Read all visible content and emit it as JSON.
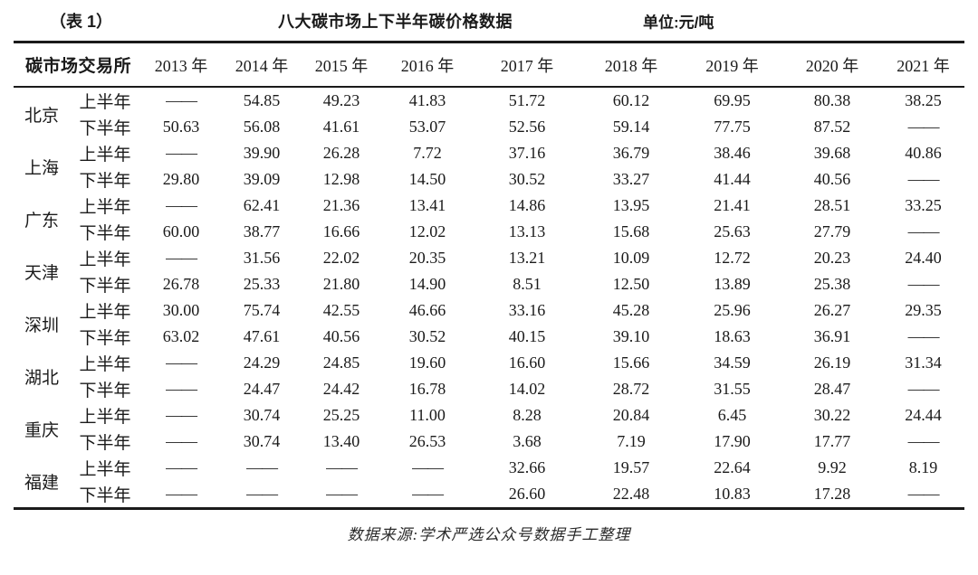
{
  "page": {
    "table_tag": "（表 1）",
    "title": "八大碳市场上下半年碳价格数据",
    "unit": "单位:元/吨",
    "source": "数据来源:学术严选公众号数据手工整理"
  },
  "table": {
    "exchange_header": "碳市场交易所",
    "years": [
      "2013 年",
      "2014 年",
      "2015 年",
      "2016 年",
      "2017 年",
      "2018 年",
      "2019 年",
      "2020 年",
      "2021 年"
    ],
    "half_labels": {
      "first": "上半年",
      "second": "下半年"
    },
    "no_data_symbol": "——",
    "markets": [
      {
        "name": "北京",
        "first_half": [
          "——",
          "54.85",
          "49.23",
          "41.83",
          "51.72",
          "60.12",
          "69.95",
          "80.38",
          "38.25"
        ],
        "second_half": [
          "50.63",
          "56.08",
          "41.61",
          "53.07",
          "52.56",
          "59.14",
          "77.75",
          "87.52",
          "——"
        ]
      },
      {
        "name": "上海",
        "first_half": [
          "——",
          "39.90",
          "26.28",
          "7.72",
          "37.16",
          "36.79",
          "38.46",
          "39.68",
          "40.86"
        ],
        "second_half": [
          "29.80",
          "39.09",
          "12.98",
          "14.50",
          "30.52",
          "33.27",
          "41.44",
          "40.56",
          "——"
        ]
      },
      {
        "name": "广东",
        "first_half": [
          "——",
          "62.41",
          "21.36",
          "13.41",
          "14.86",
          "13.95",
          "21.41",
          "28.51",
          "33.25"
        ],
        "second_half": [
          "60.00",
          "38.77",
          "16.66",
          "12.02",
          "13.13",
          "15.68",
          "25.63",
          "27.79",
          "——"
        ]
      },
      {
        "name": "天津",
        "first_half": [
          "——",
          "31.56",
          "22.02",
          "20.35",
          "13.21",
          "10.09",
          "12.72",
          "20.23",
          "24.40"
        ],
        "second_half": [
          "26.78",
          "25.33",
          "21.80",
          "14.90",
          "8.51",
          "12.50",
          "13.89",
          "25.38",
          "——"
        ]
      },
      {
        "name": "深圳",
        "first_half": [
          "30.00",
          "75.74",
          "42.55",
          "46.66",
          "33.16",
          "45.28",
          "25.96",
          "26.27",
          "29.35"
        ],
        "second_half": [
          "63.02",
          "47.61",
          "40.56",
          "30.52",
          "40.15",
          "39.10",
          "18.63",
          "36.91",
          "——"
        ]
      },
      {
        "name": "湖北",
        "first_half": [
          "——",
          "24.29",
          "24.85",
          "19.60",
          "16.60",
          "15.66",
          "34.59",
          "26.19",
          "31.34"
        ],
        "second_half": [
          "——",
          "24.47",
          "24.42",
          "16.78",
          "14.02",
          "28.72",
          "31.55",
          "28.47",
          "——"
        ]
      },
      {
        "name": "重庆",
        "first_half": [
          "——",
          "30.74",
          "25.25",
          "11.00",
          "8.28",
          "20.84",
          "6.45",
          "30.22",
          "24.44"
        ],
        "second_half": [
          "——",
          "30.74",
          "13.40",
          "26.53",
          "3.68",
          "7.19",
          "17.90",
          "17.77",
          "——"
        ]
      },
      {
        "name": "福建",
        "first_half": [
          "——",
          "——",
          "——",
          "——",
          "32.66",
          "19.57",
          "22.64",
          "9.92",
          "8.19"
        ],
        "second_half": [
          "——",
          "——",
          "——",
          "——",
          "26.60",
          "22.48",
          "10.83",
          "17.28",
          "——"
        ]
      }
    ]
  }
}
